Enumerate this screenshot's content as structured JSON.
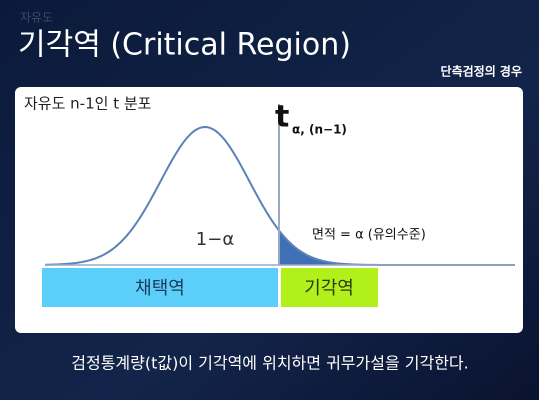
{
  "header": {
    "faint_label": "자유도",
    "title": "기각역 (Critical Region)",
    "note": "단측검정의 경우"
  },
  "diagram": {
    "distribution_label": "자유도 n-1인 t 분포",
    "critical_symbol": "t",
    "critical_subscript": "α, (n−1)",
    "center_label": "1−α",
    "area_label": "면적 = α (유의수준)",
    "acceptance_region": "채택역",
    "rejection_region": "기각역"
  },
  "footer": "검정통계량(t값)이 기각역에 위치하면 귀무가설을 기각한다."
}
